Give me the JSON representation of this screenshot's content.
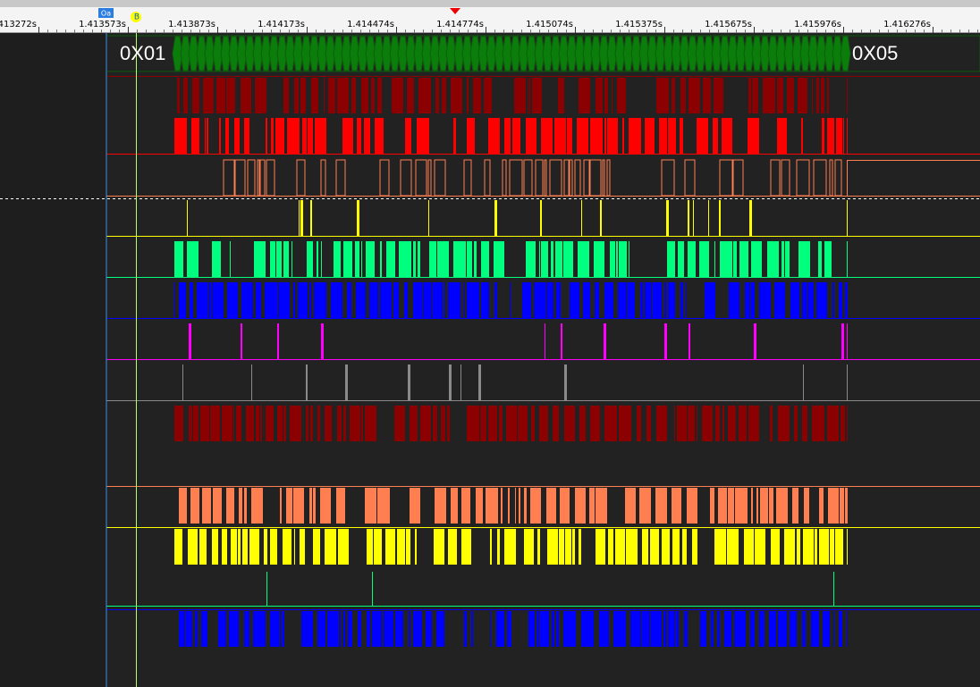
{
  "ruler": {
    "ticks": [
      "413272s",
      "1.413573s",
      "1.413873s",
      "1.414173s",
      "1.414474s",
      "1.414774s",
      "1.415074s",
      "1.415375s",
      "1.415675s",
      "1.415976s",
      "1.416276s"
    ]
  },
  "markers": {
    "a": "Oa",
    "b": "B"
  },
  "bus": {
    "start_value": "0X01",
    "end_value": "0X05"
  }
}
